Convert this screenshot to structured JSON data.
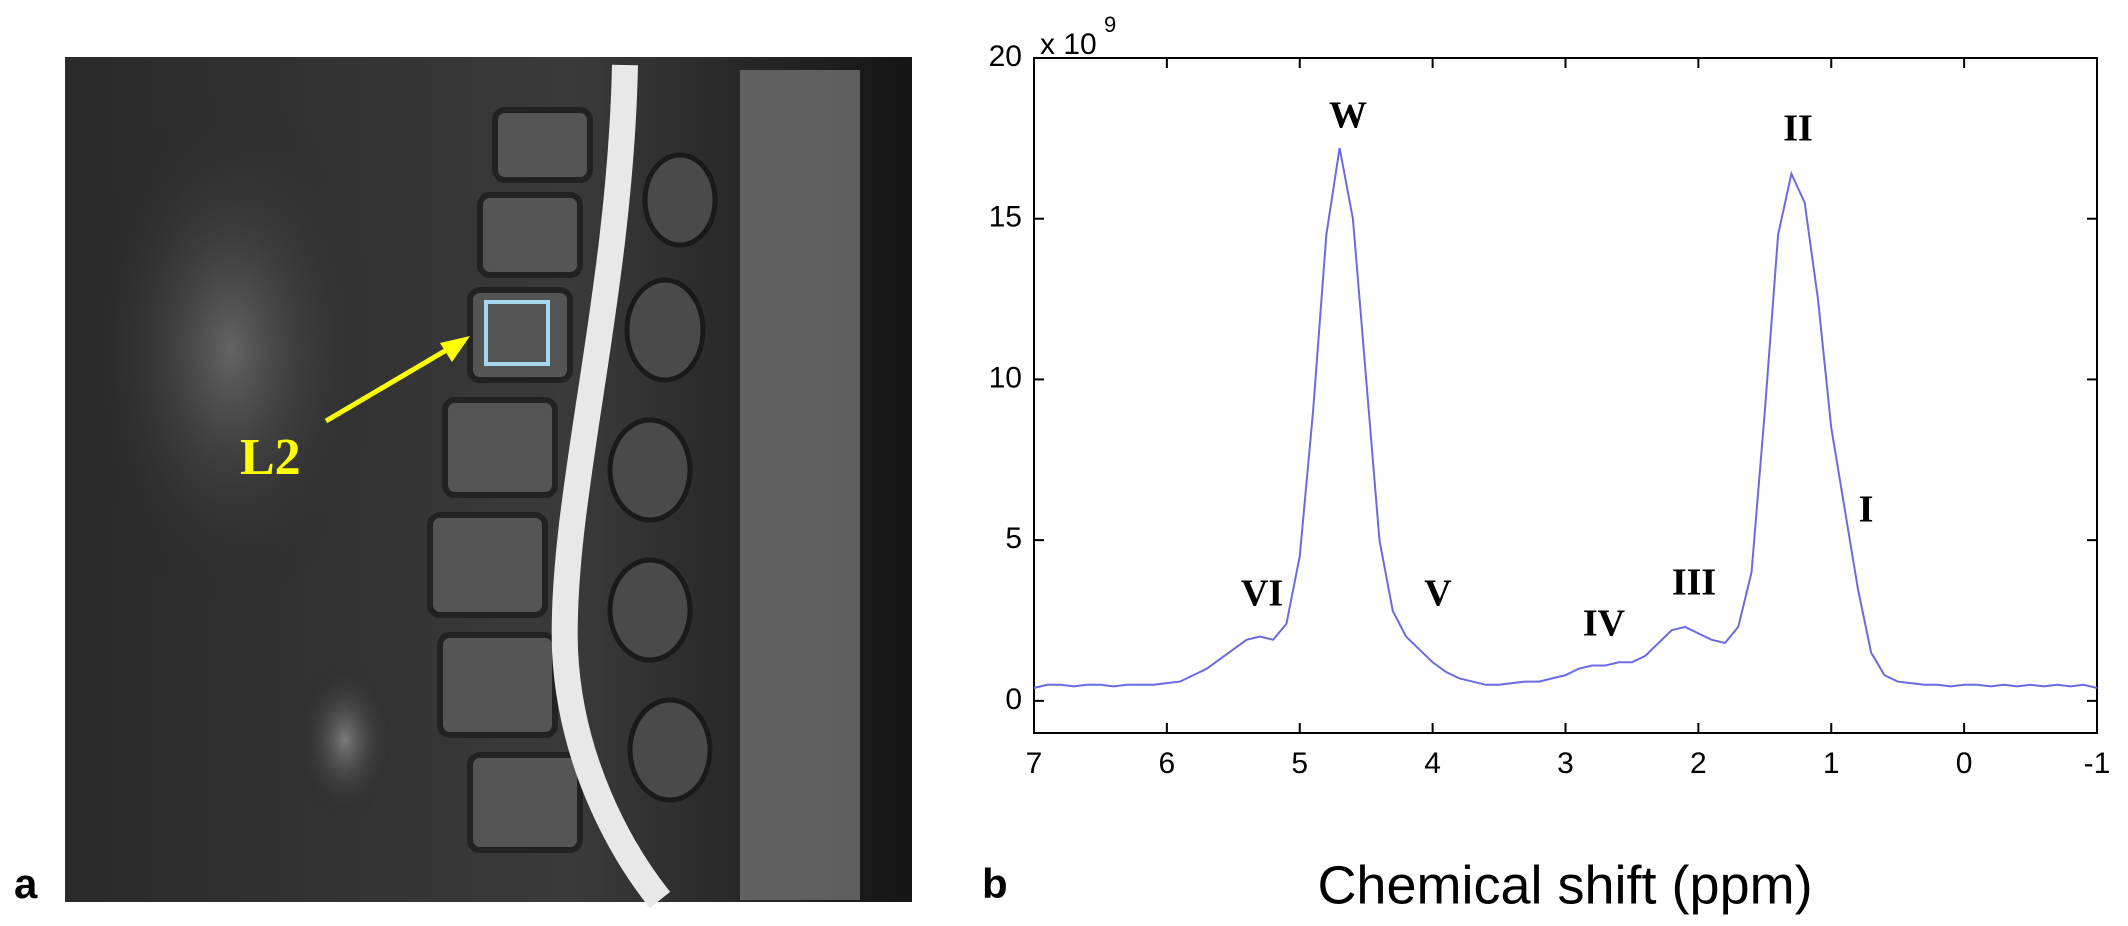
{
  "panel_labels": [
    "a",
    "b"
  ],
  "image_annotation": "L2",
  "chart_data": {
    "type": "line",
    "x_label": "Chemical shift (ppm)",
    "y_multiplier": {
      "base": "x 10",
      "exponent": "9"
    },
    "annotations": [
      "W",
      "II",
      "I",
      "VI",
      "V",
      "IV",
      "III"
    ],
    "color": "#6b6be0",
    "x": [
      7.0,
      6.9,
      6.8,
      6.7,
      6.6,
      6.5,
      6.4,
      6.3,
      6.2,
      6.1,
      6.0,
      5.9,
      5.8,
      5.7,
      5.6,
      5.5,
      5.4,
      5.3,
      5.2,
      5.1,
      5.0,
      4.9,
      4.8,
      4.7,
      4.6,
      4.5,
      4.4,
      4.3,
      4.2,
      4.1,
      4.0,
      3.9,
      3.8,
      3.7,
      3.6,
      3.5,
      3.4,
      3.3,
      3.2,
      3.1,
      3.0,
      2.9,
      2.8,
      2.7,
      2.6,
      2.5,
      2.4,
      2.3,
      2.2,
      2.1,
      2.0,
      1.9,
      1.8,
      1.7,
      1.6,
      1.5,
      1.4,
      1.3,
      1.2,
      1.1,
      1.0,
      0.9,
      0.8,
      0.7,
      0.6,
      0.5,
      0.4,
      0.3,
      0.2,
      0.1,
      0.0,
      -0.1,
      -0.2,
      -0.3,
      -0.4,
      -0.5,
      -0.6,
      -0.7,
      -0.8,
      -0.9,
      -1.0
    ],
    "values": [
      0.4,
      0.5,
      0.5,
      0.45,
      0.5,
      0.5,
      0.45,
      0.5,
      0.5,
      0.5,
      0.55,
      0.6,
      0.8,
      1.0,
      1.3,
      1.6,
      1.9,
      2.0,
      1.9,
      2.4,
      4.5,
      9.0,
      14.5,
      17.2,
      15.0,
      10.0,
      5.0,
      2.8,
      2.0,
      1.6,
      1.2,
      0.9,
      0.7,
      0.6,
      0.5,
      0.5,
      0.55,
      0.6,
      0.6,
      0.7,
      0.8,
      1.0,
      1.1,
      1.1,
      1.2,
      1.2,
      1.4,
      1.8,
      2.2,
      2.3,
      2.1,
      1.9,
      1.8,
      2.3,
      4.0,
      9.0,
      14.5,
      16.4,
      15.5,
      12.5,
      8.5,
      6.0,
      3.5,
      1.5,
      0.8,
      0.6,
      0.55,
      0.5,
      0.5,
      0.45,
      0.5,
      0.5,
      0.45,
      0.5,
      0.45,
      0.5,
      0.45,
      0.5,
      0.45,
      0.5,
      0.4
    ],
    "xlim": [
      7,
      -1
    ],
    "ylim": [
      -1,
      20
    ],
    "xticks": [
      7,
      6,
      5,
      4,
      3,
      2,
      1,
      0,
      -1
    ],
    "yticks": [
      0,
      5,
      10,
      15,
      20
    ]
  }
}
